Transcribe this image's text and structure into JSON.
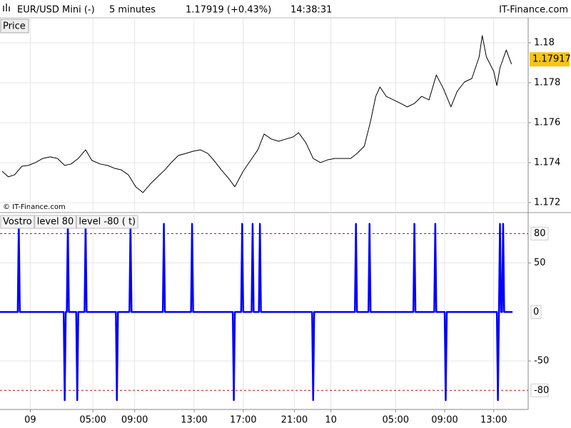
{
  "header": {
    "instrument": "EUR/USD Mini (-)",
    "interval": "5 minutes",
    "quote": "1.17919 (+0.43%)",
    "time": "14:38:31",
    "site": "IT-Finance.com"
  },
  "chart_data": [
    {
      "type": "line",
      "title": "Price",
      "credit": "© IT-Finance.com",
      "color": "#000000",
      "grid": true,
      "x": [
        2,
        8,
        14,
        21,
        27,
        34,
        41,
        48,
        55,
        62,
        68,
        75,
        82,
        88,
        96,
        103,
        110,
        116,
        123,
        130,
        137,
        144,
        151,
        158,
        164,
        171,
        178,
        185,
        192,
        199,
        205,
        212,
        219,
        225,
        233,
        240,
        247,
        253,
        260,
        267,
        274,
        281,
        286,
        293,
        300,
        307,
        314,
        321,
        327,
        336,
        342,
        349,
        355,
        360,
        364,
        370,
        377,
        384,
        390,
        397,
        404,
        411,
        418,
        425,
        432,
        438,
        445,
        452,
        459,
        462,
        466,
        473,
        476,
        479,
        485,
        490
      ],
      "values": [
        1.17357,
        1.17329,
        1.17339,
        1.17382,
        1.17386,
        1.174,
        1.17421,
        1.17429,
        1.17421,
        1.17386,
        1.17393,
        1.17421,
        1.17464,
        1.17411,
        1.17393,
        1.17386,
        1.17371,
        1.17364,
        1.17339,
        1.17279,
        1.1725,
        1.17293,
        1.17329,
        1.17364,
        1.174,
        1.17436,
        1.17446,
        1.17457,
        1.17464,
        1.17446,
        1.17411,
        1.17364,
        1.17321,
        1.17279,
        1.17357,
        1.17411,
        1.17464,
        1.17543,
        1.17518,
        1.17507,
        1.17518,
        1.17529,
        1.1755,
        1.175,
        1.17421,
        1.174,
        1.17414,
        1.17421,
        1.17421,
        1.17421,
        1.17446,
        1.17482,
        1.17607,
        1.17732,
        1.17779,
        1.17732,
        1.17714,
        1.17696,
        1.17679,
        1.17696,
        1.17732,
        1.17714,
        1.17839,
        1.17768,
        1.17679,
        1.17757,
        1.17804,
        1.17821,
        1.17929,
        1.18036,
        1.17929,
        1.17857,
        1.17786,
        1.17875,
        1.17964,
        1.17893
      ],
      "ylim": [
        1.17157,
        1.18125
      ],
      "yticks": [
        1.172,
        1.174,
        1.176,
        1.178,
        1.18
      ],
      "last_value": 1.17917,
      "last_value_color": "#f5c518",
      "xlim": [
        0,
        506
      ]
    },
    {
      "type": "line",
      "grid": true,
      "series": [
        {
          "name": "Vostro",
          "color": "#0000ff",
          "x": [
            0,
            17,
            18,
            19,
            61,
            62,
            63,
            64,
            65,
            66,
            73,
            74,
            75,
            81,
            82,
            83,
            111,
            112,
            113,
            124,
            125,
            126,
            156,
            157,
            158,
            183,
            184,
            185,
            223,
            224,
            225,
            231,
            232,
            233,
            241,
            242,
            243,
            248,
            249,
            250,
            299,
            300,
            301,
            340,
            341,
            342,
            353,
            354,
            355,
            396,
            397,
            398,
            416,
            417,
            418,
            426,
            427,
            428,
            476,
            477,
            478,
            479,
            480,
            481,
            482,
            483,
            491
          ],
          "values": [
            0,
            0,
            90,
            0,
            0,
            -90,
            0,
            0,
            90,
            0,
            0,
            -90,
            0,
            0,
            90,
            0,
            0,
            -90,
            0,
            0,
            90,
            0,
            0,
            90,
            0,
            0,
            90,
            0,
            0,
            -90,
            0,
            0,
            90,
            0,
            0,
            90,
            0,
            0,
            90,
            0,
            0,
            -90,
            0,
            0,
            90,
            0,
            0,
            90,
            0,
            0,
            90,
            0,
            0,
            90,
            0,
            0,
            -90,
            0,
            0,
            -90,
            0,
            90,
            0,
            0,
            90,
            0,
            0
          ]
        }
      ],
      "levels": [
        {
          "name": "level 80",
          "value": 80,
          "color": "#e00000"
        },
        {
          "name": "level -80 ( t)",
          "value": -80,
          "color": "#e00000"
        }
      ],
      "last_value": 0,
      "ylim": [
        -98,
        100
      ],
      "yticks": [
        -50,
        50
      ],
      "xlim": [
        0,
        506
      ],
      "xticks": [
        {
          "value": 29,
          "label": "09"
        },
        {
          "value": 89,
          "label": "05:00"
        },
        {
          "value": 129,
          "label": "09:00"
        },
        {
          "value": 186,
          "label": "13:00"
        },
        {
          "value": 233,
          "label": "17:00"
        },
        {
          "value": 282,
          "label": "21:00"
        },
        {
          "value": 317,
          "label": "10"
        },
        {
          "value": 379,
          "label": "05:00"
        },
        {
          "value": 426,
          "label": "09:00"
        },
        {
          "value": 473,
          "label": "13:00"
        }
      ]
    }
  ]
}
